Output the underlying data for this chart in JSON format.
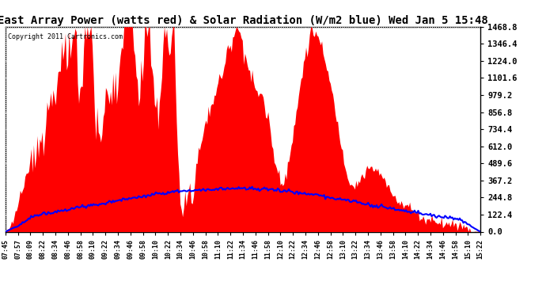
{
  "title": "East Array Power (watts red) & Solar Radiation (W/m2 blue) Wed Jan 5 15:48",
  "copyright": "Copyright 2011 Cartronics.com",
  "ymax": 1469.0,
  "ymin": 0.0,
  "ytick_interval": 122.4,
  "background_color": "#ffffff",
  "grid_color": "#ffffff",
  "fill_color": "#ff0000",
  "line_color": "#0000ff",
  "title_fontsize": 10,
  "x_labels": [
    "07:45",
    "07:57",
    "08:09",
    "08:22",
    "08:34",
    "08:46",
    "08:58",
    "09:10",
    "09:22",
    "09:34",
    "09:46",
    "09:58",
    "10:10",
    "10:22",
    "10:34",
    "10:46",
    "10:58",
    "11:10",
    "11:22",
    "11:34",
    "11:46",
    "11:58",
    "12:10",
    "12:22",
    "12:34",
    "12:46",
    "12:58",
    "13:10",
    "13:22",
    "13:34",
    "13:46",
    "13:58",
    "14:10",
    "14:22",
    "14:34",
    "14:46",
    "14:58",
    "15:10",
    "15:22"
  ]
}
